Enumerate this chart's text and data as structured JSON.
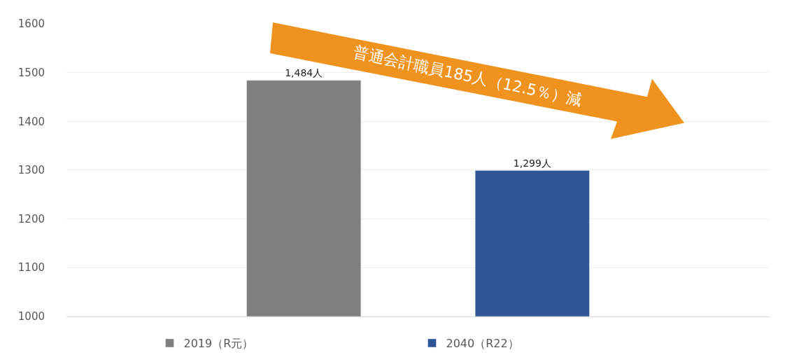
{
  "chart_data": {
    "type": "bar",
    "categories": [
      null
    ],
    "series": [
      {
        "name": "2019（R元）",
        "color": "#7f7f7f",
        "values": [
          1484
        ],
        "value_labels": [
          "1,484人"
        ]
      },
      {
        "name": "2040（R22）",
        "color": "#2f5597",
        "values": [
          1299
        ],
        "value_labels": [
          "1,299人"
        ]
      }
    ],
    "ylim": [
      1000,
      1600
    ],
    "yticks": [
      1000,
      1100,
      1200,
      1300,
      1400,
      1500,
      1600
    ],
    "grid": "y",
    "legend": "bottom",
    "annotations": [
      "普通会計職員185人（12.5％）減"
    ]
  }
}
